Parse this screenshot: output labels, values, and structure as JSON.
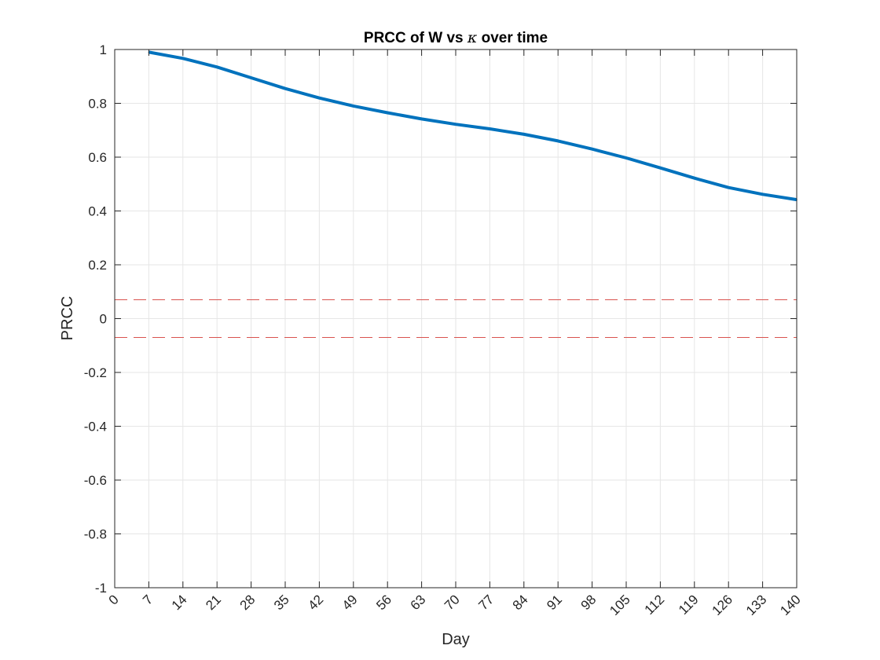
{
  "chart_data": {
    "type": "line",
    "title": "PRCC of W vs κ over time",
    "title_parts": {
      "before": "PRCC of W vs ",
      "symbol": "κ",
      "after": " over time"
    },
    "xlabel": "Day",
    "ylabel": "PRCC",
    "xlim": [
      0,
      140
    ],
    "ylim": [
      -1,
      1
    ],
    "x_ticks": [
      0,
      7,
      14,
      21,
      28,
      35,
      42,
      49,
      56,
      63,
      70,
      77,
      84,
      91,
      98,
      105,
      112,
      119,
      126,
      133,
      140
    ],
    "y_ticks": [
      -1,
      -0.8,
      -0.6,
      -0.4,
      -0.2,
      0,
      0.2,
      0.4,
      0.6,
      0.8,
      1
    ],
    "y_tick_labels": [
      "-1",
      "-0.8",
      "-0.6",
      "-0.4",
      "-0.2",
      "0",
      "0.2",
      "0.4",
      "0.6",
      "0.8",
      "1"
    ],
    "grid": true,
    "series": [
      {
        "color": "#0072BD",
        "x": [
          7,
          14,
          21,
          28,
          35,
          42,
          49,
          56,
          63,
          70,
          77,
          84,
          91,
          98,
          105,
          112,
          119,
          126,
          133,
          140
        ],
        "values": [
          0.99,
          0.967,
          0.935,
          0.895,
          0.855,
          0.82,
          0.79,
          0.765,
          0.742,
          0.722,
          0.705,
          0.685,
          0.66,
          0.63,
          0.597,
          0.56,
          0.522,
          0.487,
          0.462,
          0.442
        ]
      }
    ],
    "reference_lines": [
      {
        "y": 0.07,
        "color": "#D9534F",
        "style": "dashed"
      },
      {
        "y": -0.07,
        "color": "#D9534F",
        "style": "dashed"
      }
    ]
  }
}
